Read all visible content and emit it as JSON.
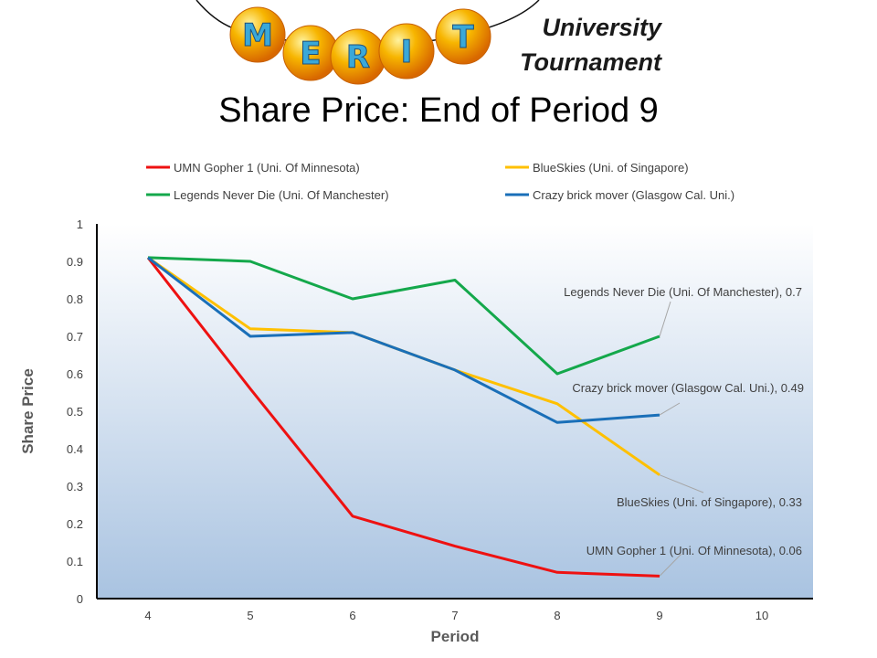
{
  "brand": {
    "logo_letters": [
      "M",
      "E",
      "R",
      "I",
      "T"
    ],
    "line1": "University",
    "line2": "Tournament"
  },
  "colors": {
    "logo_ball": "#f5a000",
    "logo_letter": "#3aa8d8"
  },
  "chart_data": {
    "type": "line",
    "title": "Share Price: End of Period 9",
    "xlabel": "Period",
    "ylabel": "Share Price",
    "x_ticks": [
      4,
      5,
      6,
      7,
      8,
      9,
      10
    ],
    "y_ticks": [
      "0",
      "0.1",
      "0.2",
      "0.3",
      "0.4",
      "0.5",
      "0.6",
      "0.7",
      "0.8",
      "0.9",
      "1"
    ],
    "xlim": [
      3.5,
      10.5
    ],
    "ylim": [
      0,
      1
    ],
    "legend_position": "top",
    "series": [
      {
        "name": "UMN Gopher 1 (Uni. Of Minnesota)",
        "color": "#ee1111",
        "x": [
          4,
          5,
          6,
          7,
          8,
          9
        ],
        "values": [
          0.91,
          0.56,
          0.22,
          0.14,
          0.07,
          0.06
        ],
        "end_label": "UMN Gopher 1 (Uni. Of Minnesota), 0.06"
      },
      {
        "name": "BlueSkies (Uni. of Singapore)",
        "color": "#ffc000",
        "x": [
          4,
          5,
          6,
          7,
          8,
          9
        ],
        "values": [
          0.91,
          0.72,
          0.71,
          0.61,
          0.52,
          0.33
        ],
        "end_label": "BlueSkies (Uni. of Singapore), 0.33"
      },
      {
        "name": "Legends Never Die (Uni. Of Manchester)",
        "color": "#14a84b",
        "x": [
          4,
          5,
          6,
          7,
          8,
          9
        ],
        "values": [
          0.91,
          0.9,
          0.8,
          0.85,
          0.6,
          0.7
        ],
        "end_label": "Legends Never Die (Uni. Of Manchester), 0.7"
      },
      {
        "name": "Crazy brick mover (Glasgow Cal. Uni.)",
        "color": "#1a6fb8",
        "x": [
          4,
          5,
          6,
          7,
          8,
          9
        ],
        "values": [
          0.91,
          0.7,
          0.71,
          0.61,
          0.47,
          0.49
        ],
        "end_label": "Crazy brick mover  (Glasgow Cal. Uni.), 0.49"
      }
    ]
  }
}
